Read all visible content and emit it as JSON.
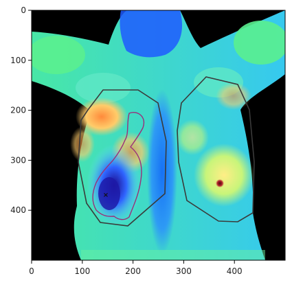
{
  "figure": {
    "type": "image-plot",
    "subject": "thermal-image",
    "colormap": "jet-like",
    "x_axis": {
      "ticks": [
        "0",
        "100",
        "200",
        "300",
        "400"
      ],
      "range": [
        0,
        500
      ]
    },
    "y_axis": {
      "ticks": [
        "0",
        "100",
        "200",
        "300",
        "400"
      ],
      "range": [
        0,
        500
      ],
      "inverted": true
    },
    "overlays": {
      "outline_color": "#3a3a3a",
      "highlight_color": "#9a2f7a",
      "marker_color": "#111111",
      "marker_glyph": "×"
    }
  }
}
